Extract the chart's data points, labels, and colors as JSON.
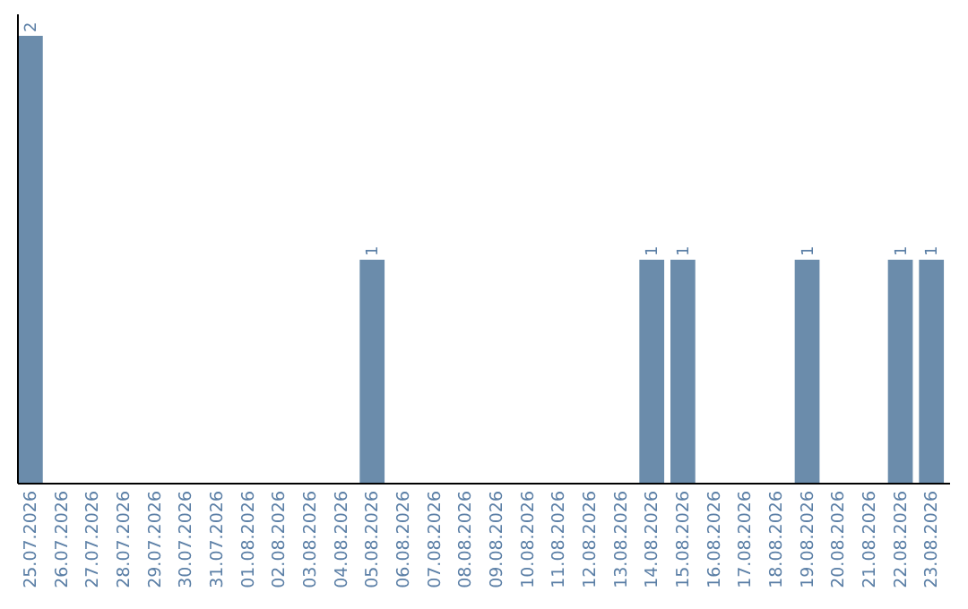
{
  "chart_data": {
    "type": "bar",
    "categories": [
      "25.07.2026",
      "26.07.2026",
      "27.07.2026",
      "28.07.2026",
      "29.07.2026",
      "30.07.2026",
      "31.07.2026",
      "01.08.2026",
      "02.08.2026",
      "03.08.2026",
      "04.08.2026",
      "05.08.2026",
      "06.08.2026",
      "07.08.2026",
      "08.08.2026",
      "09.08.2026",
      "10.08.2026",
      "11.08.2026",
      "12.08.2026",
      "13.08.2026",
      "14.08.2026",
      "15.08.2026",
      "16.08.2026",
      "17.08.2026",
      "18.08.2026",
      "19.08.2026",
      "20.08.2026",
      "21.08.2026",
      "22.08.2026",
      "23.08.2026"
    ],
    "values": [
      2,
      0,
      0,
      0,
      0,
      0,
      0,
      0,
      0,
      0,
      0,
      1,
      0,
      0,
      0,
      0,
      0,
      0,
      0,
      0,
      1,
      1,
      0,
      0,
      0,
      1,
      0,
      0,
      1,
      1
    ],
    "value_labels": [
      "2",
      null,
      null,
      null,
      null,
      null,
      null,
      null,
      null,
      null,
      null,
      "1",
      null,
      null,
      null,
      null,
      null,
      null,
      null,
      null,
      "1",
      "1",
      null,
      null,
      null,
      "1",
      null,
      null,
      "1",
      "1"
    ],
    "color": "#6b8cab",
    "ylim": [
      0,
      2
    ],
    "tick_labels": "x"
  }
}
